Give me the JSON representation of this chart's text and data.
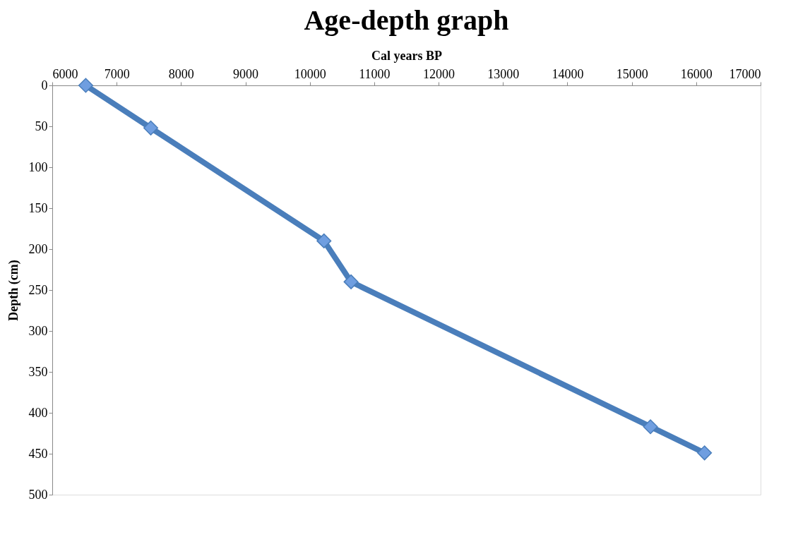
{
  "chart_data": {
    "type": "line",
    "title": "Age-depth graph",
    "xlabel": "Cal years BP",
    "ylabel": "Depth (cm)",
    "x": [
      6520,
      7530,
      10220,
      10640,
      15290,
      16130
    ],
    "series": [
      {
        "color": "#4a7ebb",
        "values": [
          0,
          52,
          190,
          240,
          417,
          449
        ]
      }
    ],
    "xlim": [
      6000,
      17000
    ],
    "xticks": [
      6000,
      7000,
      8000,
      9000,
      10000,
      11000,
      12000,
      13000,
      14000,
      15000,
      16000,
      17000
    ],
    "ylim": [
      500,
      0
    ],
    "yticks": [
      0,
      50,
      100,
      150,
      200,
      250,
      300,
      350,
      400,
      450,
      500
    ],
    "grid": false,
    "marker": "diamond",
    "line_style": "solid"
  }
}
